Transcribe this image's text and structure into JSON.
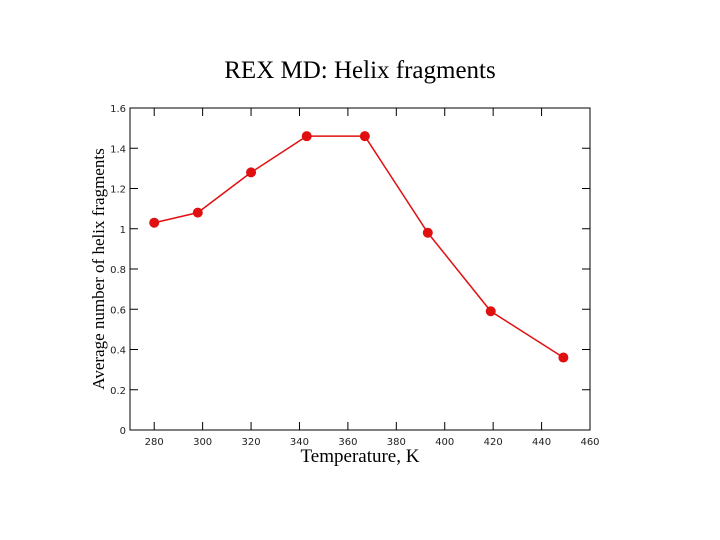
{
  "chart_data": {
    "type": "line",
    "title": "REX MD: Helix fragments",
    "x_label": "Temperature, K",
    "y_label": "Average number of helix fragments",
    "x": [
      280,
      298,
      320,
      343,
      367,
      393,
      419,
      449
    ],
    "series": [
      {
        "name": "Helix fragments",
        "color": "#e01010",
        "values": [
          1.03,
          1.08,
          1.28,
          1.46,
          1.46,
          0.98,
          0.59,
          0.36
        ]
      }
    ],
    "xlim": [
      270,
      460
    ],
    "xticks": [
      280,
      300,
      320,
      340,
      360,
      380,
      400,
      420,
      440,
      460
    ],
    "ylim": [
      0,
      1.6
    ],
    "yticks": [
      0,
      0.2,
      0.4,
      0.6,
      0.8,
      1,
      1.2,
      1.4,
      1.6
    ]
  }
}
